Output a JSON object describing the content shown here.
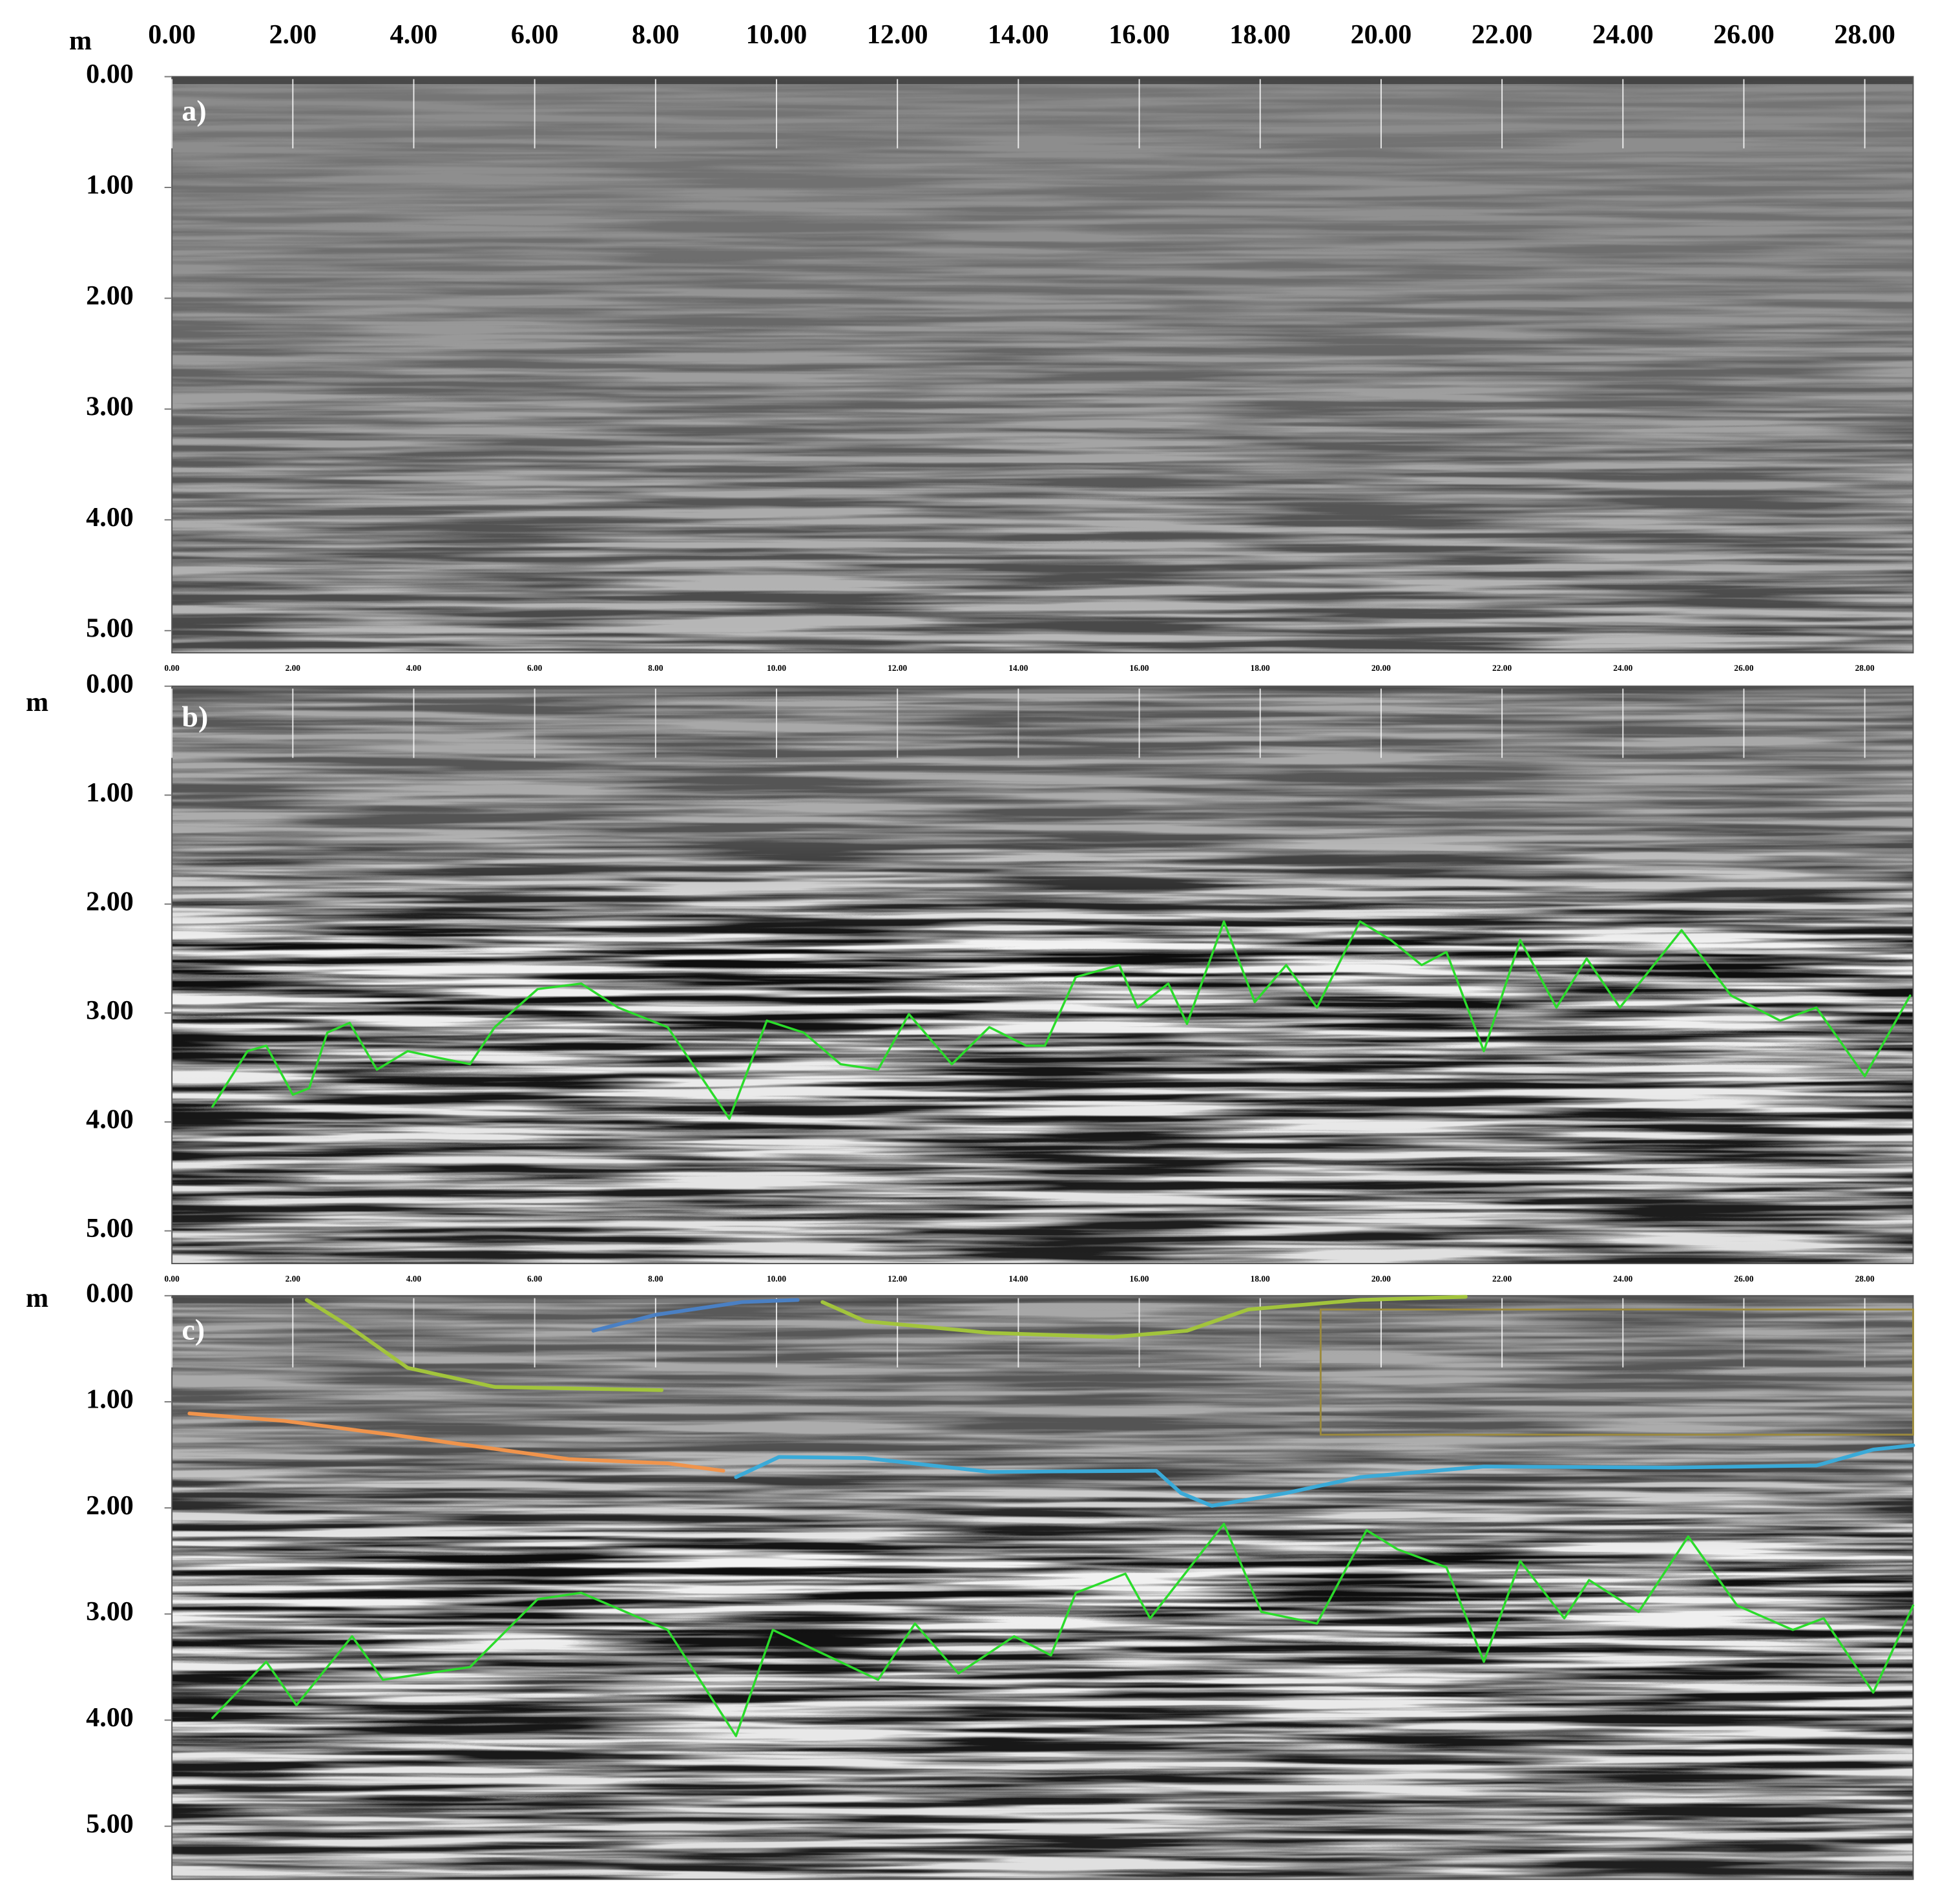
{
  "chart_data": [
    {
      "type": "line",
      "label": "a)",
      "ylabel": "m",
      "xlim": [
        0,
        28.8
      ],
      "ylim": [
        0,
        5.2
      ],
      "xticks": [
        {
          "value": 0,
          "label": "0.00"
        },
        {
          "value": 2,
          "label": "2.00"
        },
        {
          "value": 4,
          "label": "4.00"
        },
        {
          "value": 6,
          "label": "6.00"
        },
        {
          "value": 8,
          "label": "8.00"
        },
        {
          "value": 10,
          "label": "10.00"
        },
        {
          "value": 12,
          "label": "12.00"
        },
        {
          "value": 14,
          "label": "14.00"
        },
        {
          "value": 16,
          "label": "16.00"
        },
        {
          "value": 18,
          "label": "18.00"
        },
        {
          "value": 20,
          "label": "20.00"
        },
        {
          "value": 22,
          "label": "22.00"
        },
        {
          "value": 24,
          "label": "24.00"
        },
        {
          "value": 26,
          "label": "26.00"
        },
        {
          "value": 28,
          "label": "28.00"
        }
      ],
      "yticks": [
        {
          "value": 0,
          "label": "0.00"
        },
        {
          "value": 1,
          "label": "1.00"
        },
        {
          "value": 2,
          "label": "2.00"
        },
        {
          "value": 3,
          "label": "3.00"
        },
        {
          "value": 4,
          "label": "4.00"
        },
        {
          "value": 5,
          "label": "5.00"
        }
      ]
    },
    {
      "type": "line",
      "label": "b)",
      "ylabel": "m",
      "xlim": [
        0,
        28.8
      ],
      "ylim": [
        0,
        5.3
      ],
      "xticks": [
        {
          "value": 0,
          "label": "0.00"
        },
        {
          "value": 2,
          "label": "2.00"
        },
        {
          "value": 4,
          "label": "4.00"
        },
        {
          "value": 6,
          "label": "6.00"
        },
        {
          "value": 8,
          "label": "8.00"
        },
        {
          "value": 10,
          "label": "10.00"
        },
        {
          "value": 12,
          "label": "12.00"
        },
        {
          "value": 14,
          "label": "14.00"
        },
        {
          "value": 16,
          "label": "16.00"
        },
        {
          "value": 18,
          "label": "18.00"
        },
        {
          "value": 20,
          "label": "20.00"
        },
        {
          "value": 22,
          "label": "22.00"
        },
        {
          "value": 24,
          "label": "24.00"
        },
        {
          "value": 26,
          "label": "26.00"
        },
        {
          "value": 28,
          "label": "28.00"
        }
      ],
      "yticks": [
        {
          "value": 0,
          "label": "0.00"
        },
        {
          "value": 1,
          "label": "1.00"
        },
        {
          "value": 2,
          "label": "2.00"
        },
        {
          "value": 3,
          "label": "3.00"
        },
        {
          "value": 4,
          "label": "4.00"
        },
        {
          "value": 5,
          "label": "5.00"
        }
      ],
      "series": [
        {
          "color": "#2bdc2b",
          "x": [
            0.67,
            1.25,
            1.56,
            2.0,
            2.27,
            2.57,
            2.94,
            3.39,
            3.9,
            4.4,
            4.93,
            5.34,
            6.05,
            6.77,
            7.38,
            8.2,
            9.22,
            9.84,
            10.45,
            11.06,
            11.68,
            12.19,
            12.9,
            13.52,
            14.13,
            14.44,
            14.95,
            15.67,
            15.97,
            16.48,
            16.79,
            17.4,
            17.91,
            18.43,
            18.94,
            19.65,
            20.16,
            20.67,
            21.08,
            21.7,
            22.3,
            22.9,
            23.4,
            23.95,
            24.97,
            25.79,
            26.6,
            27.2,
            28.0,
            28.75
          ],
          "values": [
            3.86,
            3.35,
            3.3,
            3.75,
            3.69,
            3.18,
            3.09,
            3.52,
            3.35,
            3.41,
            3.47,
            3.13,
            2.78,
            2.73,
            2.95,
            3.13,
            3.97,
            3.07,
            3.18,
            3.47,
            3.52,
            3.01,
            3.47,
            3.13,
            3.3,
            3.3,
            2.67,
            2.56,
            2.95,
            2.73,
            3.1,
            2.16,
            2.9,
            2.56,
            2.95,
            2.16,
            2.33,
            2.56,
            2.44,
            3.35,
            2.33,
            2.95,
            2.5,
            2.95,
            2.24,
            2.84,
            3.07,
            2.95,
            3.58,
            2.84
          ]
        }
      ]
    },
    {
      "type": "line",
      "label": "c)",
      "ylabel": "m",
      "xlim": [
        0,
        28.8
      ],
      "ylim": [
        0,
        5.5
      ],
      "xticks": [
        {
          "value": 0,
          "label": "0.00"
        },
        {
          "value": 2,
          "label": "2.00"
        },
        {
          "value": 4,
          "label": "4.00"
        },
        {
          "value": 6,
          "label": "6.00"
        },
        {
          "value": 8,
          "label": "8.00"
        },
        {
          "value": 10,
          "label": "10.00"
        },
        {
          "value": 12,
          "label": "12.00"
        },
        {
          "value": 14,
          "label": "14.00"
        },
        {
          "value": 16,
          "label": "16.00"
        },
        {
          "value": 18,
          "label": "18.00"
        },
        {
          "value": 20,
          "label": "20.00"
        },
        {
          "value": 22,
          "label": "22.00"
        },
        {
          "value": 24,
          "label": "24.00"
        },
        {
          "value": 26,
          "label": "26.00"
        },
        {
          "value": 28,
          "label": "28.00"
        }
      ],
      "yticks": [
        {
          "value": 0,
          "label": "0.00"
        },
        {
          "value": 1,
          "label": "1.00"
        },
        {
          "value": 2,
          "label": "2.00"
        },
        {
          "value": 3,
          "label": "3.00"
        },
        {
          "value": 4,
          "label": "4.00"
        },
        {
          "value": 5,
          "label": "5.00"
        }
      ],
      "series": [
        {
          "color": "#2bdc2b",
          "x": [
            0.67,
            1.56,
            2.06,
            2.98,
            3.49,
            4.93,
            6.05,
            6.77,
            8.2,
            9.33,
            9.94,
            11.68,
            12.29,
            13.01,
            13.93,
            14.54,
            14.95,
            15.77,
            16.18,
            17.4,
            18.02,
            18.94,
            19.76,
            20.27,
            21.08,
            21.7,
            22.3,
            23.03,
            23.44,
            24.26,
            25.08,
            25.89,
            26.81,
            27.32,
            28.14,
            28.8
          ],
          "values": [
            3.98,
            3.45,
            3.86,
            3.21,
            3.62,
            3.5,
            2.86,
            2.8,
            3.15,
            4.15,
            3.15,
            3.62,
            3.09,
            3.56,
            3.21,
            3.39,
            2.8,
            2.62,
            3.04,
            2.15,
            2.98,
            3.09,
            2.21,
            2.39,
            2.56,
            3.45,
            2.5,
            3.04,
            2.68,
            2.98,
            2.27,
            2.92,
            3.15,
            3.04,
            3.74,
            2.92
          ]
        },
        {
          "color": "#a2c43c",
          "x": [
            2.23,
            2.88,
            3.9,
            5.34,
            8.1
          ],
          "values": [
            0.04,
            0.27,
            0.68,
            0.86,
            0.89
          ]
        },
        {
          "color": "#4a80c4",
          "x": [
            6.97,
            8.0,
            9.43,
            10.35
          ],
          "values": [
            0.33,
            0.18,
            0.06,
            0.04
          ]
        },
        {
          "color": "#a2c43c",
          "x": [
            10.76,
            11.47,
            13.52,
            15.56,
            16.79,
            17.8,
            19.65,
            21.4
          ],
          "values": [
            0.06,
            0.24,
            0.35,
            0.39,
            0.33,
            0.13,
            0.04,
            0.01
          ]
        },
        {
          "color": "#f0944c",
          "x": [
            0.29,
            1.86,
            3.9,
            6.56,
            8.2,
            9.12
          ],
          "values": [
            1.11,
            1.18,
            1.33,
            1.54,
            1.58,
            1.65
          ]
        },
        {
          "color": "#3aaad8",
          "x": [
            9.33,
            10.04,
            11.47,
            13.52,
            16.28,
            16.69,
            17.2,
            18.43,
            19.65,
            21.7,
            24.77,
            27.2,
            28.14,
            28.8
          ],
          "values": [
            1.71,
            1.52,
            1.53,
            1.66,
            1.65,
            1.86,
            1.98,
            1.86,
            1.71,
            1.61,
            1.62,
            1.6,
            1.45,
            1.41
          ]
        }
      ],
      "regions": [
        {
          "color": "#9c8a3c",
          "x": [
            19.0,
            28.8
          ],
          "y": [
            0.13,
            1.31
          ]
        }
      ]
    }
  ]
}
